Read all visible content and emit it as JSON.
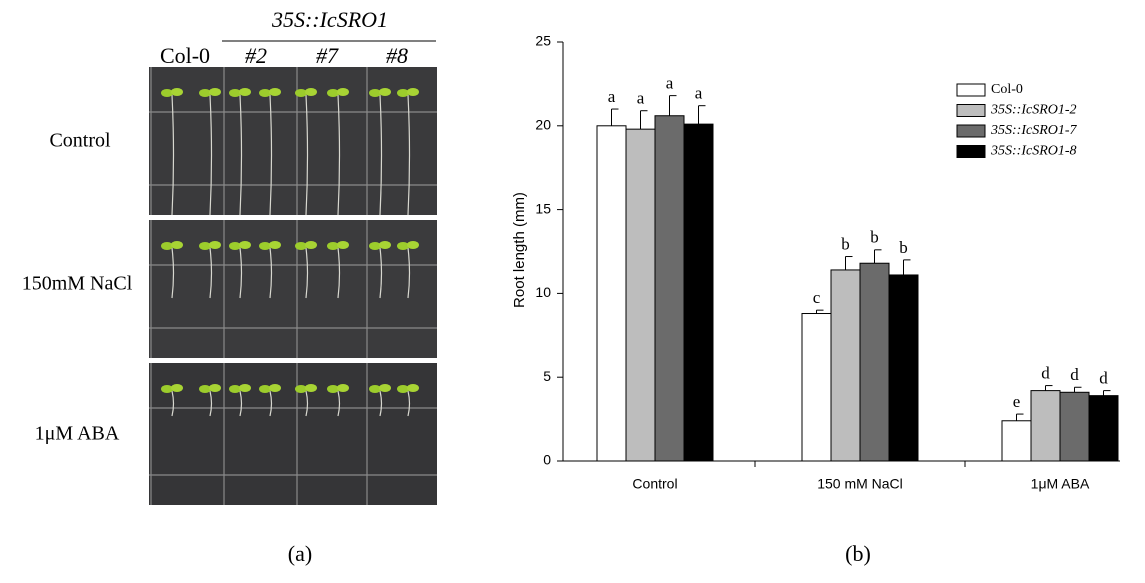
{
  "panel_a": {
    "construct": "35S::IcSRO1",
    "columns": [
      "Col-0",
      "#2",
      "#7",
      "#8"
    ],
    "rows": [
      "Control",
      "150mM NaCl",
      "1μM ABA"
    ],
    "caption": "(a)"
  },
  "chart_data": {
    "type": "bar",
    "caption": "(b)",
    "y_label": "Root length (mm)",
    "categories": [
      "Control",
      "150 mM NaCl",
      "1μM ABA"
    ],
    "ylim": [
      0,
      25
    ],
    "yticks": [
      0,
      5,
      10,
      15,
      20,
      25
    ],
    "legend": "upper right",
    "series": [
      {
        "name": "Col-0",
        "color": "#ffffff",
        "values": [
          20.0,
          8.8,
          2.4
        ],
        "errors": [
          1.0,
          0.2,
          0.4
        ],
        "letters": [
          "a",
          "c",
          "e"
        ]
      },
      {
        "name": "35S::IcSRO1-2",
        "color": "#bdbdbd",
        "values": [
          19.8,
          11.4,
          4.2
        ],
        "errors": [
          1.1,
          0.8,
          0.3
        ],
        "letters": [
          "a",
          "b",
          "d"
        ]
      },
      {
        "name": "35S::IcSRO1-7",
        "color": "#6b6b6b",
        "values": [
          20.6,
          11.8,
          4.1
        ],
        "errors": [
          1.2,
          0.8,
          0.3
        ],
        "letters": [
          "a",
          "b",
          "d"
        ]
      },
      {
        "name": "35S::IcSRO1-8",
        "color": "#000000",
        "values": [
          20.1,
          11.1,
          3.9
        ],
        "errors": [
          1.1,
          0.9,
          0.3
        ],
        "letters": [
          "a",
          "b",
          "d"
        ]
      }
    ]
  }
}
